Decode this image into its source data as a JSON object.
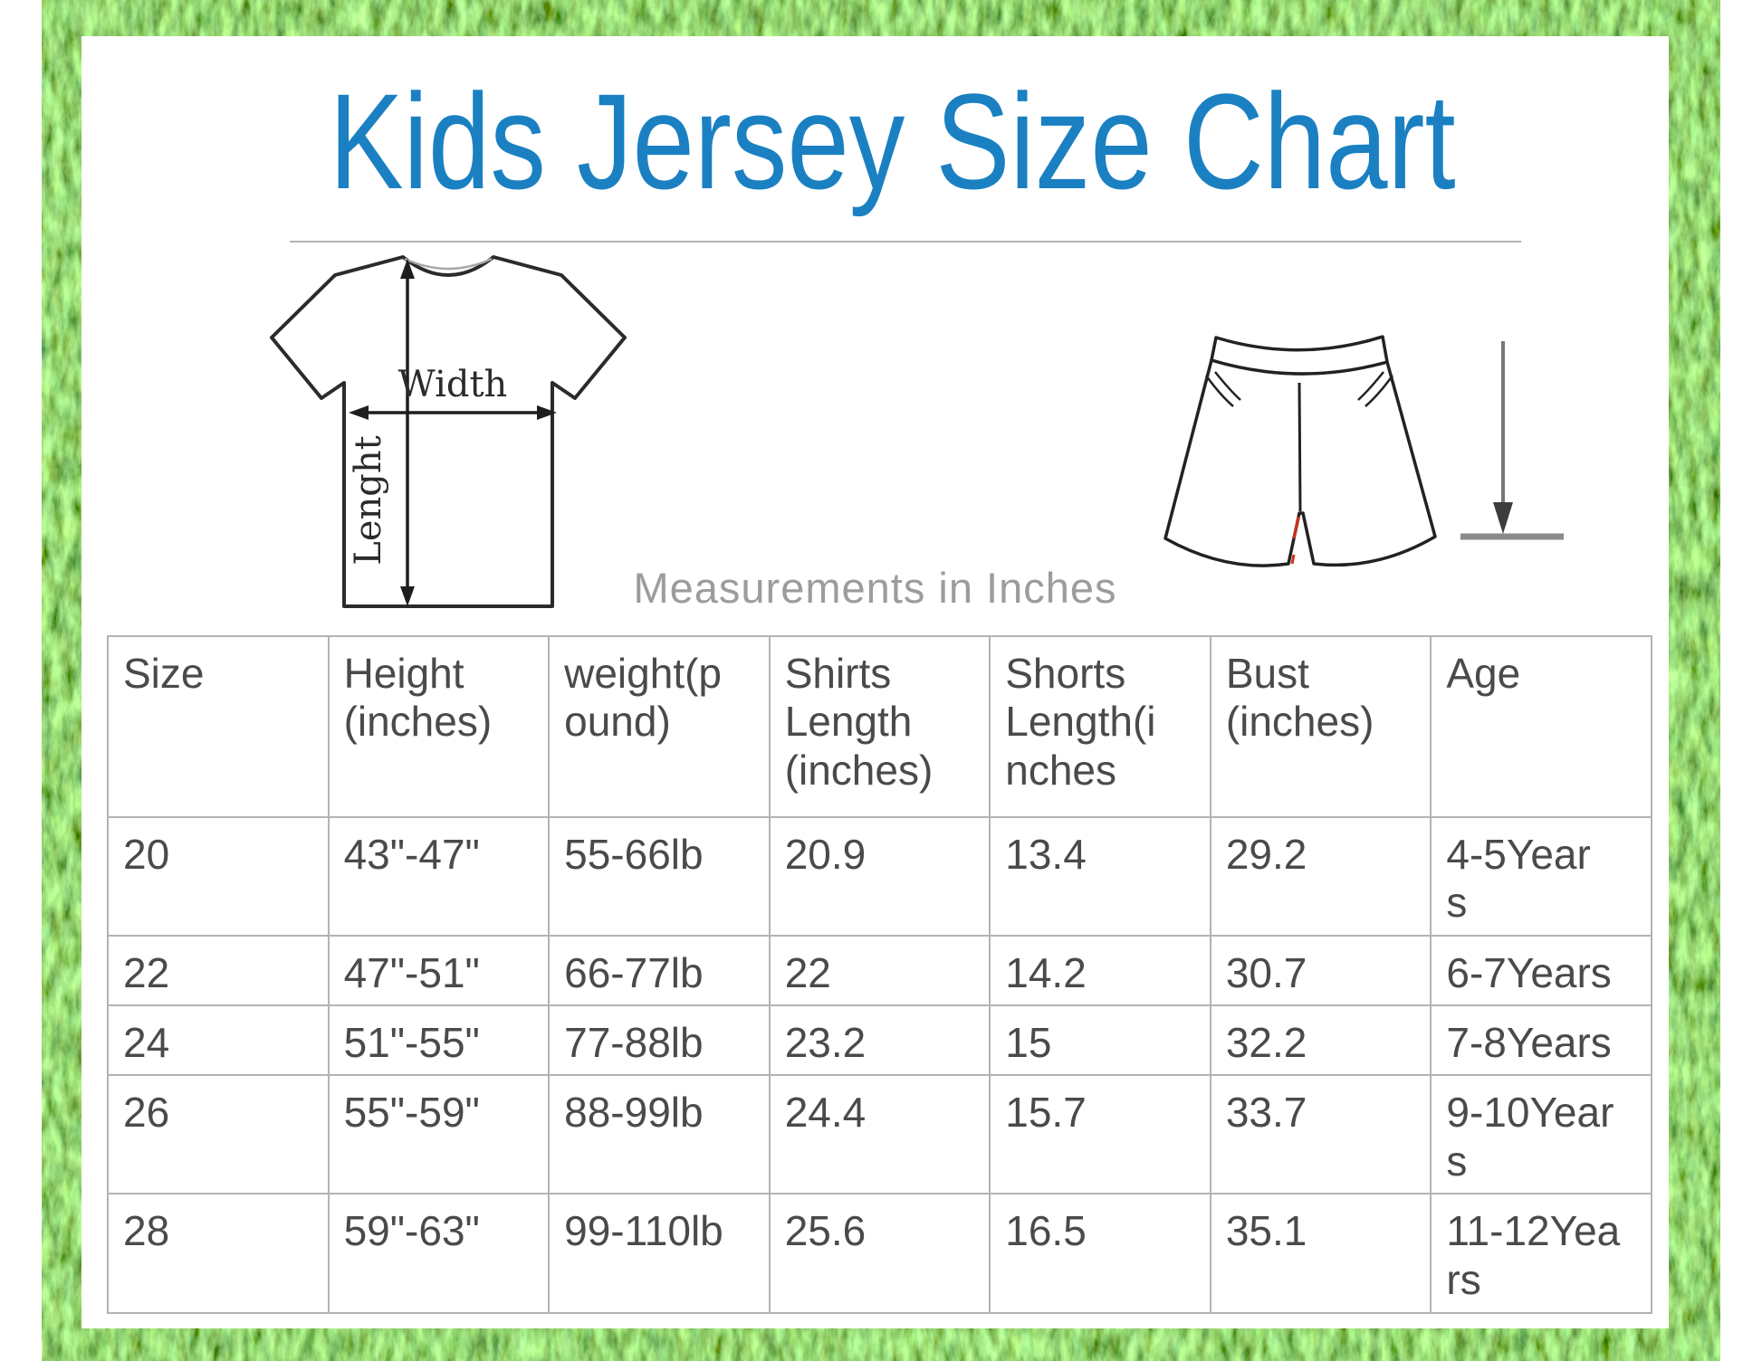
{
  "title": "Kids Jersey Size Chart",
  "measurements_note": "Measurements in Inches",
  "diagram": {
    "shirt_width_label": "Width",
    "shirt_length_label": "Lenght"
  },
  "colors": {
    "title_blue": "#1a80c2",
    "grass_green": "#2e7d1e",
    "note_gray": "#9c9c9c",
    "table_border": "#b3b3b3",
    "table_text": "#4a4a4a"
  },
  "table": {
    "columns": [
      "Size",
      "Height\n(inches)",
      "weight(p\nound)",
      "Shirts\nLength\n(inches)",
      "Shorts\nLength(i\nnches",
      "Bust\n(inches)",
      "Age"
    ],
    "rows": [
      [
        "20",
        "43\"-47\"",
        "55-66lb",
        "20.9",
        "13.4",
        "29.2",
        "4-5Year\ns"
      ],
      [
        "22",
        "47\"-51\"",
        "66-77lb",
        "22",
        "14.2",
        "30.7",
        "6-7Years"
      ],
      [
        "24",
        "51\"-55\"",
        "77-88lb",
        "23.2",
        "15",
        "32.2",
        "7-8Years"
      ],
      [
        "26",
        "55\"-59\"",
        "88-99lb",
        "24.4",
        "15.7",
        "33.7",
        "9-10Year\ns"
      ],
      [
        "28",
        "59\"-63\"",
        "99-110lb",
        "25.6",
        "16.5",
        "35.1",
        "11-12Yea\nrs"
      ]
    ]
  }
}
